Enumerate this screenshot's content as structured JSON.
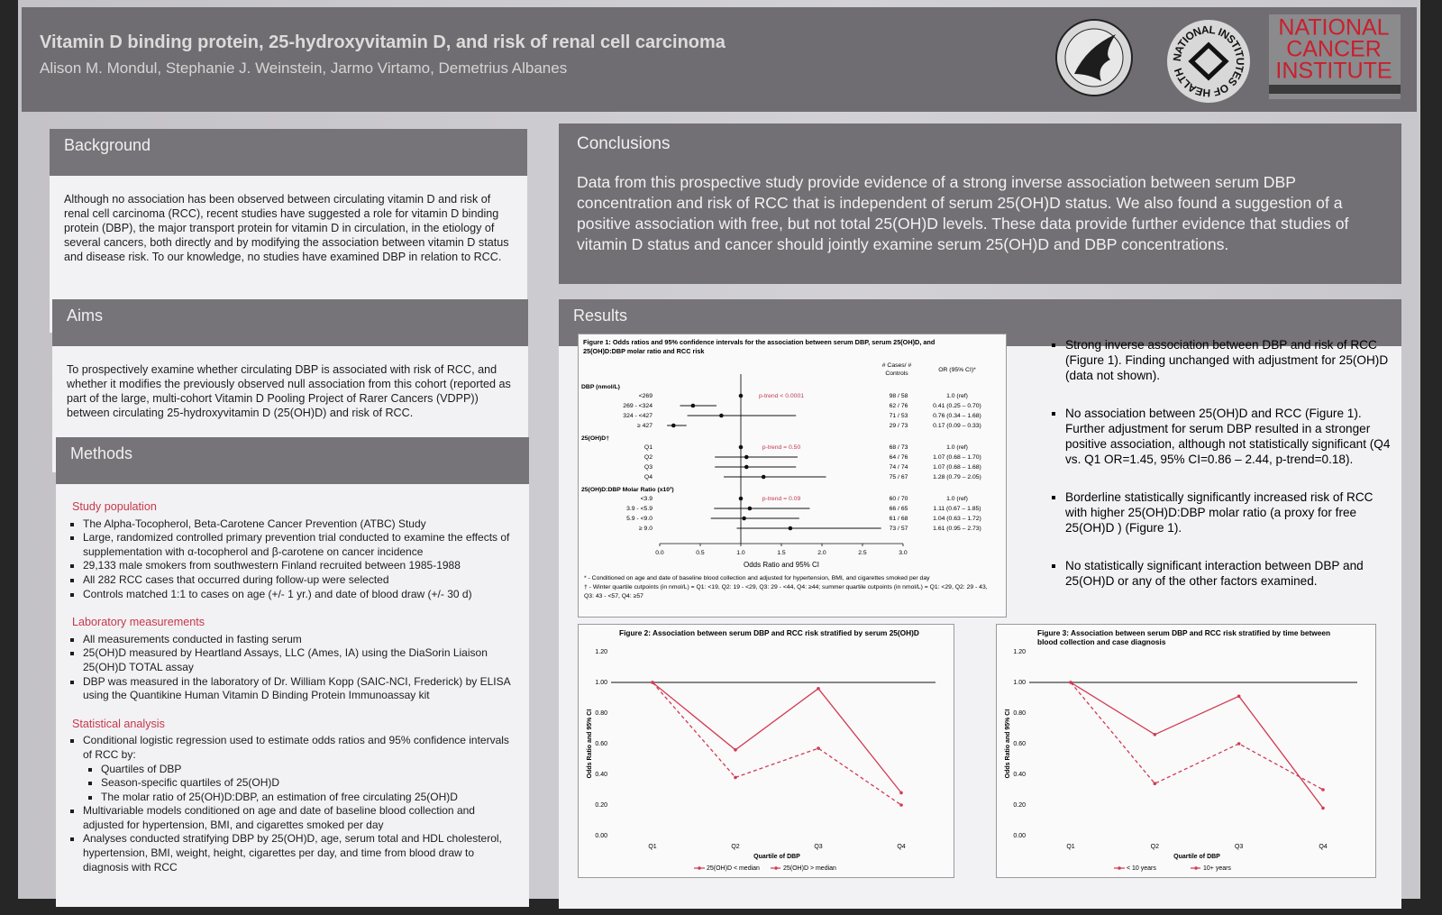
{
  "header": {
    "title": "Vitamin D binding protein, 25-hydroxyvitamin D, and risk of renal cell carcinoma",
    "authors": "Alison M. Mondul, Stephanie J. Weinstein, Jarmo Virtamo, Demetrius Albanes",
    "nih_logo": "NATIONAL INSTITUTES OF HEALTH",
    "nci_logo": [
      "NATIONAL",
      "CANCER",
      "INSTITUTE"
    ]
  },
  "background": {
    "heading": "Background",
    "text": "Although no association has been observed between circulating vitamin D and risk of renal cell carcinoma (RCC), recent studies have suggested a role for vitamin D binding protein (DBP), the major transport protein for vitamin D in circulation, in the etiology of several cancers, both directly and by modifying the association between vitamin D status and disease risk.  To our knowledge, no studies have examined DBP in relation to RCC."
  },
  "aims": {
    "heading": "Aims",
    "text": "To prospectively examine whether circulating DBP is associated with risk of RCC, and whether it modifies the previously observed null association from this cohort (reported as part of the large, multi-cohort Vitamin D Pooling Project of Rarer Cancers (VDPP)) between circulating 25-hydroxyvitamin D (25(OH)D) and risk of RCC."
  },
  "methods": {
    "heading": "Methods",
    "sections": [
      {
        "heading": "Study population",
        "items": [
          {
            "text": "The Alpha-Tocopherol, Beta-Carotene Cancer Prevention (ATBC) Study"
          },
          {
            "text": "Large, randomized controlled primary prevention trial conducted to examine the effects of supplementation with α-tocopherol and β-carotene on cancer incidence"
          },
          {
            "text": "29,133 male smokers from southwestern Finland recruited between 1985-1988"
          },
          {
            "text": "All 282 RCC cases that occurred during follow-up were selected"
          },
          {
            "text": "Controls matched 1:1 to cases on age (+/- 1 yr.) and date of blood draw (+/- 30 d)"
          }
        ]
      },
      {
        "heading": "Laboratory measurements",
        "items": [
          {
            "text": "All measurements conducted in fasting serum"
          },
          {
            "text": "25(OH)D measured by Heartland Assays, LLC (Ames, IA) using the DiaSorin Liaison 25(OH)D TOTAL assay"
          },
          {
            "text": "DBP was measured in the laboratory of Dr. William Kopp (SAIC-NCI, Frederick) by ELISA  using the Quantikine Human Vitamin D Binding Protein Immunoassay kit"
          }
        ]
      },
      {
        "heading": "Statistical analysis",
        "items": [
          {
            "text": "Conditional logistic regression used to estimate odds ratios and 95% confidence intervals of RCC by:",
            "items": [
              {
                "text": "Quartiles of DBP"
              },
              {
                "text": "Season-specific quartiles of 25(OH)D"
              },
              {
                "text": "The molar ratio of 25(OH)D:DBP, an estimation of free circulating 25(OH)D"
              }
            ]
          },
          {
            "text": "Multivariable models conditioned on age and date of baseline blood collection and adjusted for hypertension, BMI, and cigarettes smoked per day"
          },
          {
            "text": "Analyses conducted stratifying DBP by 25(OH)D, age, serum total and HDL cholesterol, hypertension, BMI, weight, height, cigarettes per day,  and time from blood draw to diagnosis with RCC"
          }
        ]
      }
    ]
  },
  "conclusions": {
    "heading": "Conclusions",
    "text": "Data from this prospective study provide evidence of a strong inverse association between serum DBP concentration and risk of RCC that is independent of serum 25(OH)D status.  We also found a suggestion of a positive association with free, but not total 25(OH)D levels.  These data provide further evidence that studies of vitamin D status and cancer should jointly examine serum 25(OH)D and DBP concentrations."
  },
  "results": {
    "heading": "Results",
    "bullets": [
      "Strong inverse association between DBP and risk of RCC (Figure 1). Finding unchanged with adjustment for 25(OH)D (data not shown).",
      "No association between 25(OH)D and RCC (Figure 1). Further adjustment for serum DBP resulted in a stronger positive association, although not statistically significant (Q4 vs. Q1 OR=1.45, 95% CI=0.86 – 2.44, p-trend=0.18).",
      "Borderline statistically significantly increased risk of RCC with higher 25(OH)D:DBP molar ratio (a proxy for free 25(OH)D ) (Figure 1).",
      "No statistically significant interaction between DBP and 25(OH)D or any of the other factors examined."
    ],
    "figures": [
      {
        "type": "forest",
        "title": "Figure 1: Odds ratios and 95% confidence intervals for the association between serum DBP, serum 25(OH)D, and 25(OH)D:DBP molar ratio and RCC risk",
        "columns": [
          "# Cases/ # Controls",
          "OR (95% CI)*"
        ],
        "color": "#111111",
        "groups": [
          {
            "label": "DBP (nmol/L)",
            "p_trend": "p-trend < 0.0001",
            "rows": [
              {
                "label": "<269",
                "cases": "98 / 58",
                "estimate": 1.0,
                "estimate_label": "1.0 (ref)"
              },
              {
                "label": "269 - <324",
                "cases": "62 / 76",
                "estimate": 0.41,
                "lower": 0.25,
                "upper": 0.7,
                "estimate_label": "0.41 (0.25 – 0.70)"
              },
              {
                "label": "324 - <427",
                "cases": "71 / 53",
                "estimate": 0.76,
                "lower": 0.34,
                "upper": 1.68,
                "estimate_label": "0.76 (0.34 – 1.68)"
              },
              {
                "label": "≥ 427",
                "cases": "29 / 73",
                "estimate": 0.17,
                "lower": 0.09,
                "upper": 0.33,
                "estimate_label": "0.17 (0.09 – 0.33)"
              }
            ]
          },
          {
            "label": "25(OH)D†",
            "p_trend": "p-trend = 0.50",
            "rows": [
              {
                "label": "Q1",
                "cases": "68 / 73",
                "estimate": 1.0,
                "estimate_label": "1.0 (ref)"
              },
              {
                "label": "Q2",
                "cases": "64 / 76",
                "estimate": 1.07,
                "lower": 0.68,
                "upper": 1.7,
                "estimate_label": "1.07 (0.68 – 1.70)"
              },
              {
                "label": "Q3",
                "cases": "74 / 74",
                "estimate": 1.07,
                "lower": 0.68,
                "upper": 1.68,
                "estimate_label": "1.07 (0.68 – 1.68)"
              },
              {
                "label": "Q4",
                "cases": "75 / 67",
                "estimate": 1.28,
                "lower": 0.79,
                "upper": 2.05,
                "estimate_label": "1.28 (0.79 – 2.05)"
              }
            ]
          },
          {
            "label": "25(OH)D:DBP Molar Ratio (x10³)",
            "p_trend": "p-trend = 0.09",
            "rows": [
              {
                "label": "<3.9",
                "cases": "60 / 70",
                "estimate": 1.0,
                "estimate_label": "1.0 (ref)"
              },
              {
                "label": "3.9 - <5.9",
                "cases": "66 / 65",
                "estimate": 1.11,
                "lower": 0.67,
                "upper": 1.85,
                "estimate_label": "1.11 (0.67 – 1.85)"
              },
              {
                "label": "5.9 - <9.0",
                "cases": "61 / 68",
                "estimate": 1.04,
                "lower": 0.63,
                "upper": 1.72,
                "estimate_label": "1.04 (0.63 – 1.72)"
              },
              {
                "label": "≥ 9.0",
                "cases": "73 / 57",
                "estimate": 1.61,
                "lower": 0.95,
                "upper": 2.73,
                "estimate_label": "1.61 (0.95 – 2.73)"
              }
            ]
          }
        ],
        "xlim": [
          0,
          3
        ],
        "xticks": [
          {
            "value": 0,
            "label": "0.0"
          },
          0.5,
          {
            "value": 1,
            "label": "1.0"
          },
          1.5,
          {
            "value": 2,
            "label": "2.0"
          },
          2.5,
          {
            "value": 3,
            "label": "3.0"
          }
        ],
        "xlabel": "Odds Ratio and 95% CI",
        "reference_line": 1,
        "footnotes": [
          "* - Conditioned on age and date of baseline blood collection and adjusted for hypertension, BMI, and cigarettes smoked per day",
          "† - Winter quartile cutpoints (in nmol/L) = Q1: <19, Q2: 19 - <29, Q3: 29 - <44, Q4: ≥44; summer quartile cutpoints (in nmol/L) = Q1: <29, Q2: 29 - 43, Q3: 43 - <57, Q4: ≥57"
        ]
      },
      {
        "type": "line",
        "title": "Figure 2: Association between serum DBP and RCC risk stratified by serum 25(OH)D",
        "categories": [
          "Q1",
          "Q2",
          "Q3",
          "Q4"
        ],
        "series": [
          {
            "name": "25(OH)D < median",
            "color": "#d23a52",
            "line_style": "solid",
            "values": [
              1.0,
              0.56,
              0.96,
              0.28
            ]
          },
          {
            "name": "25(OH)D > median",
            "color": "#d23a52",
            "line_style": "dashed",
            "values": [
              1.0,
              0.38,
              0.57,
              0.2
            ]
          }
        ],
        "ylim": [
          0,
          1.2
        ],
        "yticks": [
          {
            "value": 0,
            "label": "0.00"
          },
          {
            "value": 0.2,
            "label": "0.20"
          },
          {
            "value": 0.4,
            "label": "0.40"
          },
          {
            "value": 0.6,
            "label": "0.60"
          },
          {
            "value": 0.8,
            "label": "0.80"
          },
          {
            "value": 1,
            "label": "1.00"
          },
          {
            "value": 1.2,
            "label": "1.20"
          }
        ],
        "xlabel": "Quartile of DBP",
        "ylabel": "Odds Ratio and 95% CI",
        "reference_line": 1
      },
      {
        "type": "line",
        "title": "Figure 3: Association between serum DBP and RCC risk stratified by time between blood collection and case diagnosis",
        "categories": [
          "Q1",
          "Q2",
          "Q3",
          "Q4"
        ],
        "series": [
          {
            "name": "< 10 years",
            "color": "#d23a52",
            "line_style": "solid",
            "values": [
              1.0,
              0.66,
              0.91,
              0.18
            ]
          },
          {
            "name": "10+ years",
            "color": "#d23a52",
            "line_style": "dashed",
            "values": [
              1.0,
              0.34,
              0.6,
              0.3
            ]
          }
        ],
        "ylim": [
          0,
          1.2
        ],
        "yticks": [
          {
            "value": 0,
            "label": "0.00"
          },
          {
            "value": 0.2,
            "label": "0.20"
          },
          {
            "value": 0.4,
            "label": "0.40"
          },
          {
            "value": 0.6,
            "label": "0.60"
          },
          {
            "value": 0.8,
            "label": "0.80"
          },
          {
            "value": 1,
            "label": "1.00"
          },
          {
            "value": 1.2,
            "label": "1.20"
          }
        ],
        "xlabel": "Quartile of DBP",
        "ylabel": "Odds Ratio and 95% CI",
        "reference_line": 1
      }
    ]
  }
}
